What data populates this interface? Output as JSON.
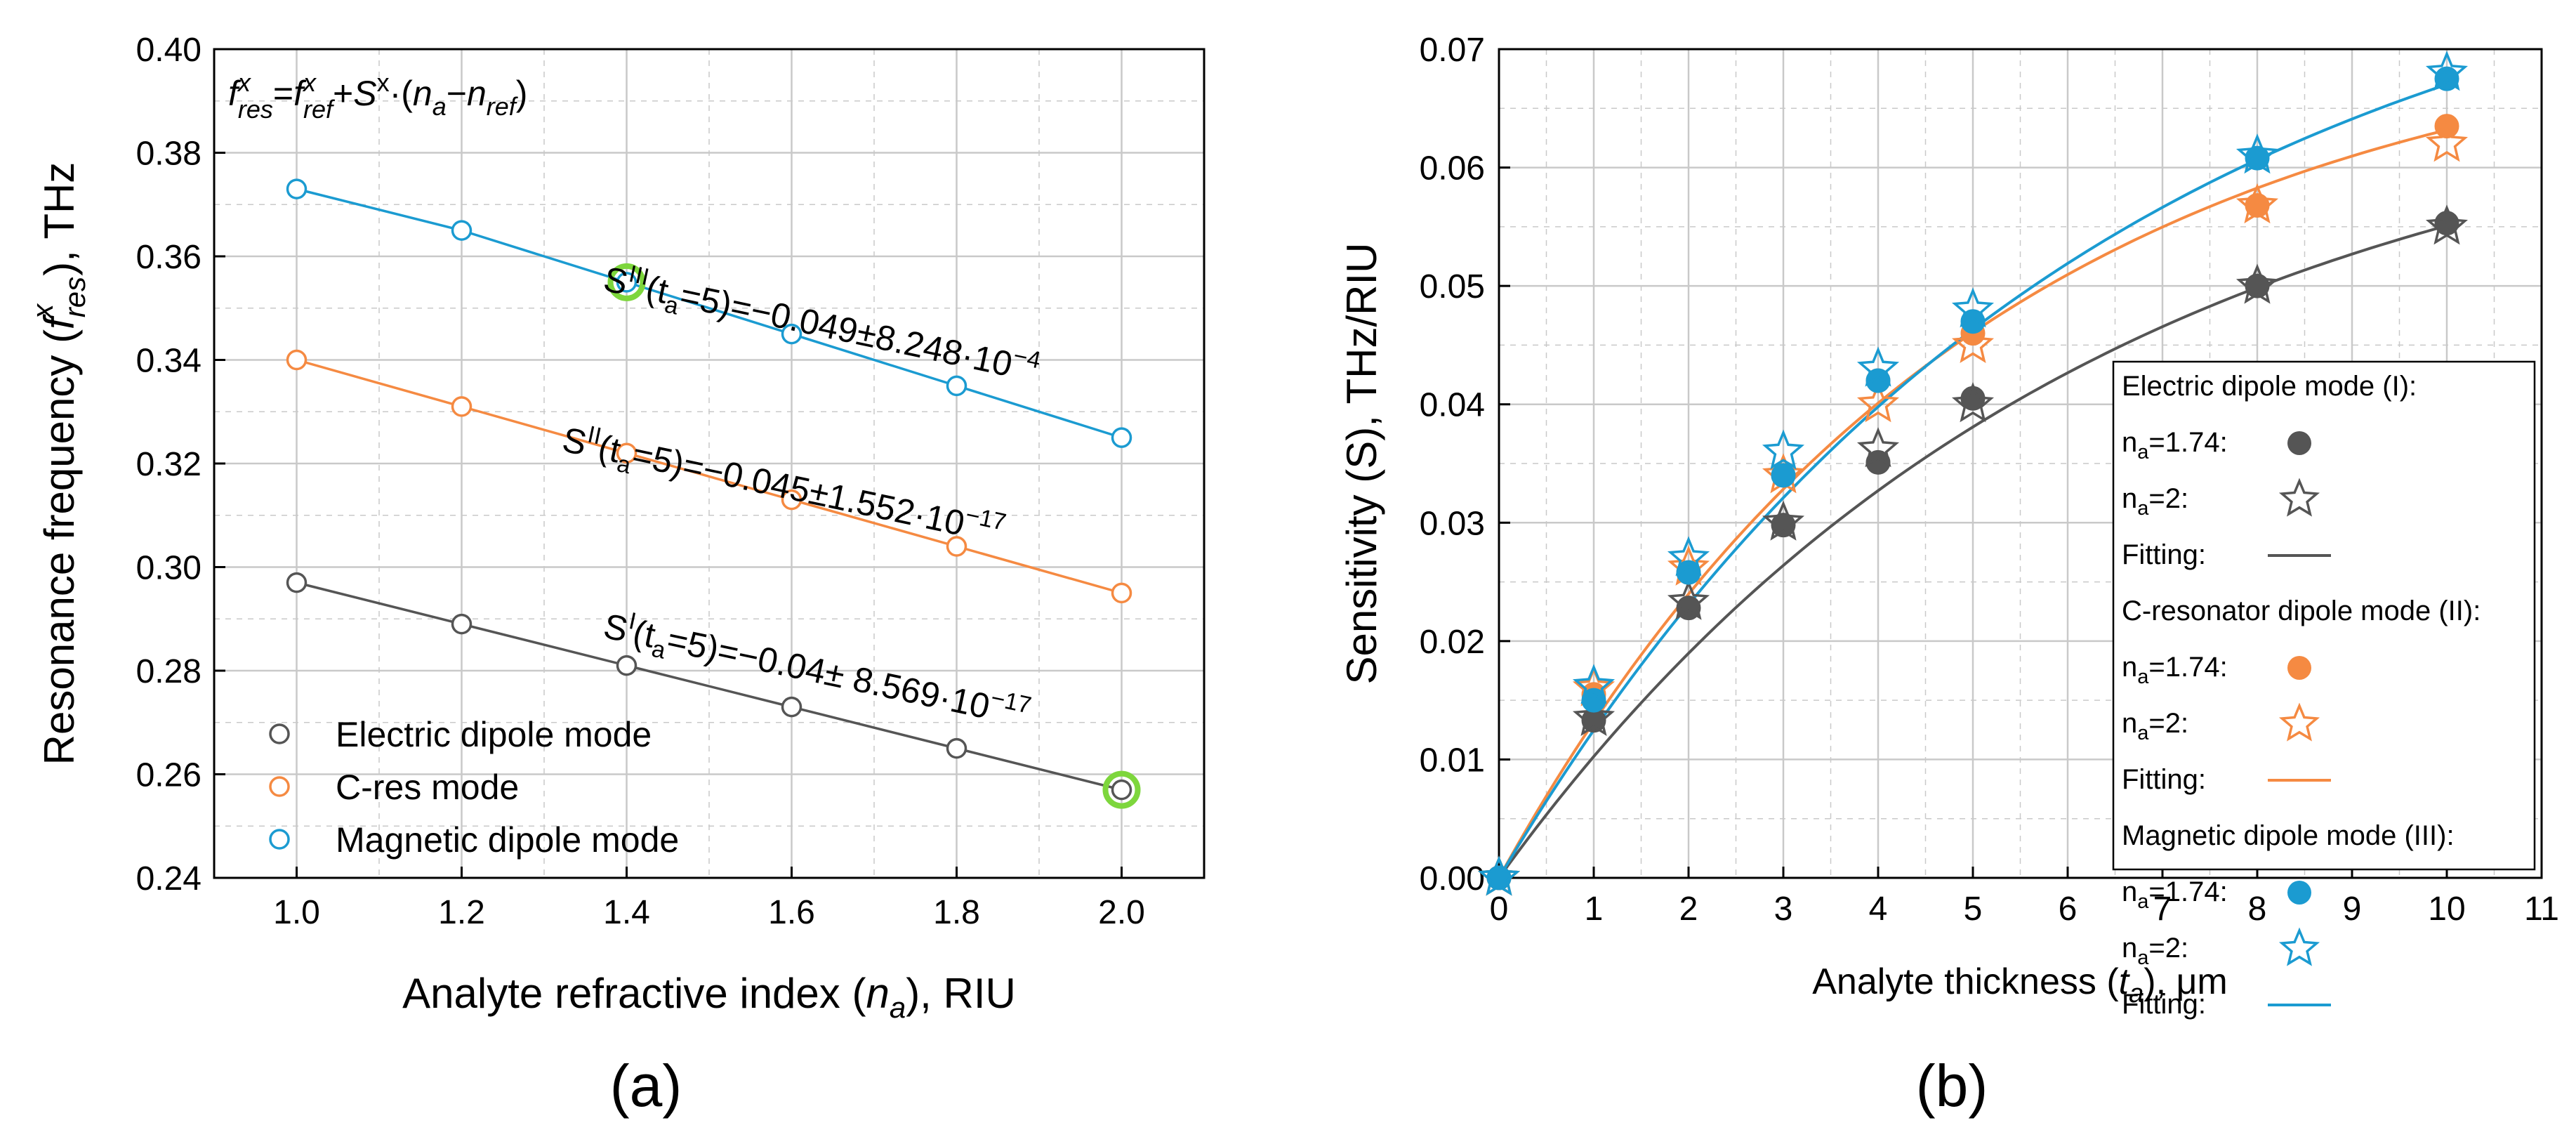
{
  "colors": {
    "electric": "#555555",
    "cres": "#F58A42",
    "magnetic": "#1B9BD1",
    "highlight": "#7DD63C",
    "grid": "#c9c9c9"
  },
  "panel_labels": [
    "(a)",
    "(b)"
  ],
  "chart_data": [
    {
      "type": "line",
      "title": "",
      "xlabel": "Analyte refractive index (n_a), RIU",
      "ylabel": "Resonance frequency (f_res^x), THz",
      "xlim": [
        0.9,
        2.1
      ],
      "ylim": [
        0.24,
        0.4
      ],
      "xticks": [
        "1.0",
        "1.2",
        "1.4",
        "1.6",
        "1.8",
        "2.0"
      ],
      "yticks": [
        "0.24",
        "0.26",
        "0.28",
        "0.30",
        "0.32",
        "0.34",
        "0.36",
        "0.38",
        "0.40"
      ],
      "grid": true,
      "legend_position": "bottom-left",
      "formula": "f_res^x = f_ref^x + S^x·(n_a − n_ref)",
      "x": [
        1.0,
        1.2,
        1.4,
        1.6,
        1.8,
        2.0
      ],
      "series": [
        {
          "name": "Electric dipole mode",
          "color_key": "electric",
          "values": [
            0.297,
            0.289,
            0.281,
            0.273,
            0.265,
            0.257
          ]
        },
        {
          "name": "C-res mode",
          "color_key": "cres",
          "values": [
            0.34,
            0.331,
            0.322,
            0.313,
            0.304,
            0.295
          ]
        },
        {
          "name": "Magnetic dipole mode",
          "color_key": "magnetic",
          "values": [
            0.373,
            0.365,
            0.355,
            0.345,
            0.335,
            0.325
          ]
        }
      ],
      "highlights": [
        {
          "x": 1.4,
          "y": 0.355
        },
        {
          "x": 2.0,
          "y": 0.257
        }
      ],
      "annotations": [
        {
          "label": "S^III(t_a=5)=−0.049±8.248·10^−4",
          "base": "S",
          "sup": "III",
          "mid": "(t",
          "sub": "a",
          "rest": "=5)=−0.049±8.248·10",
          "exp": "−4",
          "x": 1.37,
          "y": 0.3535,
          "angle": 12
        },
        {
          "label": "S^II(t_a=5)=−0.045±1.552·10^−17",
          "base": "S",
          "sup": "II",
          "mid": "(t",
          "sub": "a",
          "rest": "=5)=−0.045±1.552·10",
          "exp": "−17",
          "x": 1.32,
          "y": 0.3225,
          "angle": 12
        },
        {
          "label": "S^I(t_a=5)=−0.04± 8.569·10^−17",
          "base": "S",
          "sup": "I",
          "mid": "(t",
          "sub": "a",
          "rest": "=5)=−0.04± 8.569·10",
          "exp": "−17",
          "x": 1.37,
          "y": 0.2865,
          "angle": 12
        }
      ]
    },
    {
      "type": "scatter",
      "title": "",
      "xlabel": "Analyte thickness (t_a), μm",
      "ylabel": "Sensitivity (S), THz/RIU",
      "xlim": [
        0,
        11
      ],
      "ylim": [
        0,
        0.07
      ],
      "xticks": [
        "0",
        "1",
        "2",
        "3",
        "4",
        "5",
        "6",
        "7",
        "8",
        "9",
        "10",
        "11"
      ],
      "yticks": [
        "0.00",
        "0.01",
        "0.02",
        "0.03",
        "0.04",
        "0.05",
        "0.06",
        "0.07"
      ],
      "grid": true,
      "legend_position": "right",
      "x": [
        0,
        1,
        2,
        3,
        4,
        5,
        8,
        10
      ],
      "series": [
        {
          "name": "Electric dipole mode (I)",
          "marker_label": "n_a=1.74:",
          "color_key": "electric",
          "marker": "circle",
          "values": [
            0,
            0.0133,
            0.0228,
            0.0298,
            0.0351,
            0.0405,
            0.05,
            0.0553
          ]
        },
        {
          "name": "Electric dipole mode (I)",
          "marker_label": "n_a=2:",
          "color_key": "electric",
          "marker": "star",
          "values": [
            0,
            0.0135,
            0.0233,
            0.03,
            0.0362,
            0.04,
            0.05,
            0.055
          ]
        },
        {
          "name": "C-resonator dipole mode (II)",
          "marker_label": "n_a=1.74:",
          "color_key": "cres",
          "marker": "circle",
          "values": [
            0,
            0.0155,
            0.0258,
            0.034,
            0.042,
            0.046,
            0.0568,
            0.0635
          ]
        },
        {
          "name": "C-resonator dipole mode (II)",
          "marker_label": "n_a=2:",
          "color_key": "cres",
          "marker": "star",
          "values": [
            0,
            0.016,
            0.0262,
            0.034,
            0.04,
            0.045,
            0.0568,
            0.062
          ]
        },
        {
          "name": "Magnetic dipole mode (III)",
          "marker_label": "n_a=1.74:",
          "color_key": "magnetic",
          "marker": "circle",
          "values": [
            0,
            0.015,
            0.0258,
            0.034,
            0.042,
            0.047,
            0.0608,
            0.0675
          ]
        },
        {
          "name": "Magnetic dipole mode (III)",
          "marker_label": "n_a=2:",
          "color_key": "magnetic",
          "marker": "star",
          "values": [
            0,
            0.0162,
            0.027,
            0.036,
            0.043,
            0.048,
            0.061,
            0.068
          ]
        }
      ],
      "fits": [
        {
          "name": "Electric dipole mode (I)",
          "color_key": "electric",
          "a": 0.0688,
          "tau": 6.2
        },
        {
          "name": "C-resonator dipole mode (II)",
          "color_key": "cres",
          "a": 0.0733,
          "tau": 5.05
        },
        {
          "name": "Magnetic dipole mode (III)",
          "color_key": "magnetic",
          "a": 0.0837,
          "tau": 6.2
        }
      ],
      "legend": {
        "groups": [
          {
            "title": "Electric dipole mode (I):",
            "color_key": "electric",
            "rows": [
              "n_a=1.74:",
              "n_a=2:",
              "Fitting:"
            ]
          },
          {
            "title": "C-resonator dipole mode (II):",
            "color_key": "cres",
            "rows": [
              "n_a=1.74:",
              "n_a=2:",
              "Fitting:"
            ]
          },
          {
            "title": "Magnetic dipole mode (III):",
            "color_key": "magnetic",
            "rows": [
              "n_a=1.74:",
              "n_a=2:",
              "Fitting:"
            ]
          }
        ]
      }
    }
  ]
}
